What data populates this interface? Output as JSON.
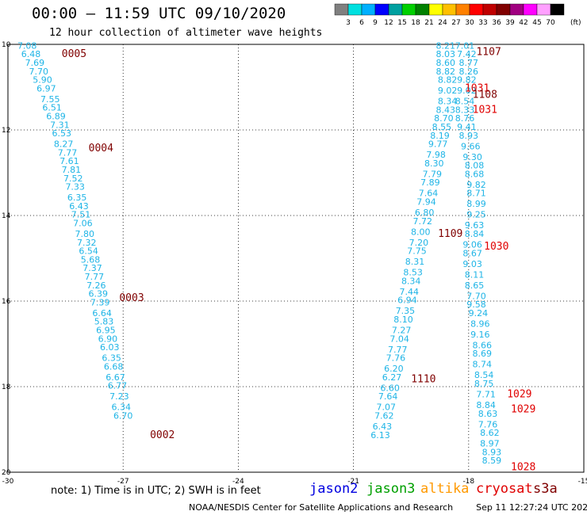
{
  "header": {
    "title": "00:00 – 11:59 UTC 09/10/2020",
    "subtitle": "12 hour collection of altimeter wave heights"
  },
  "legend": {
    "unit": "(ft)",
    "colors": [
      "#808080",
      "#00e0e0",
      "#00b0ff",
      "#0000ff",
      "#00a0a0",
      "#00d000",
      "#008000",
      "#ffff00",
      "#ffc000",
      "#ff8000",
      "#ff0000",
      "#c00000",
      "#800000",
      "#a00080",
      "#ff00ff",
      "#ffa0ff",
      "#000000"
    ],
    "labels": [
      "3",
      "6",
      "9",
      "12",
      "15",
      "18",
      "21",
      "24",
      "27",
      "30",
      "33",
      "36",
      "39",
      "42",
      "45",
      "70"
    ]
  },
  "axes": {
    "x_ticks": [
      "-30",
      "-27",
      "-24",
      "-21",
      "-18",
      "-15"
    ],
    "y_ticks": [
      "10",
      "12",
      "14",
      "16",
      "18",
      "20"
    ]
  },
  "chart_data": {
    "type": "scatter",
    "x_range": [
      -30,
      -15
    ],
    "y_range": [
      10,
      20
    ],
    "y_inverted": true,
    "grid": "dotted",
    "tracks": [
      {
        "color": "#1eb4e6",
        "points": [
          [
            -29.5,
            10.1,
            "7.08"
          ],
          [
            -29.4,
            10.3,
            "6.48"
          ],
          [
            -29.3,
            10.5,
            "7.69"
          ],
          [
            -29.2,
            10.7,
            "7.70"
          ],
          [
            -29.1,
            10.9,
            "5.90"
          ],
          [
            -29.0,
            11.1,
            "6.97"
          ],
          [
            -28.9,
            11.35,
            "7.55"
          ],
          [
            -28.85,
            11.55,
            "6.51"
          ],
          [
            -28.75,
            11.75,
            "6.89"
          ],
          [
            -28.65,
            11.95,
            "7.31"
          ],
          [
            -28.6,
            12.15,
            "6.53"
          ],
          [
            -28.55,
            12.4,
            "8.27"
          ],
          [
            -28.45,
            12.6,
            "7.77"
          ],
          [
            -28.4,
            12.8,
            "7.61"
          ],
          [
            -28.35,
            13.0,
            "7.81"
          ],
          [
            -28.3,
            13.2,
            "7.52"
          ],
          [
            -28.25,
            13.4,
            "7.33"
          ],
          [
            -28.2,
            13.65,
            "6.35"
          ],
          [
            -28.15,
            13.85,
            "6.43"
          ],
          [
            -28.1,
            14.05,
            "7.51"
          ],
          [
            -28.05,
            14.25,
            "7.06"
          ],
          [
            -28.0,
            14.5,
            "7.80"
          ],
          [
            -27.95,
            14.7,
            "7.32"
          ],
          [
            -27.9,
            14.9,
            "6.54"
          ],
          [
            -27.85,
            15.1,
            "5.68"
          ],
          [
            -27.8,
            15.3,
            "7.37"
          ],
          [
            -27.75,
            15.5,
            "7.77"
          ],
          [
            -27.7,
            15.7,
            "7.26"
          ],
          [
            -27.65,
            15.9,
            "6.39"
          ],
          [
            -27.6,
            16.1,
            "7.39"
          ],
          [
            -27.55,
            16.35,
            "6.64"
          ],
          [
            -27.5,
            16.55,
            "5.83"
          ],
          [
            -27.45,
            16.75,
            "6.95"
          ],
          [
            -27.4,
            16.95,
            "6.90"
          ],
          [
            -27.35,
            17.15,
            "6.03"
          ],
          [
            -27.3,
            17.4,
            "6.35"
          ],
          [
            -27.25,
            17.6,
            "6.68"
          ],
          [
            -27.2,
            17.85,
            "6.67"
          ],
          [
            -27.15,
            18.05,
            "6.77"
          ],
          [
            -27.1,
            18.3,
            "7.23"
          ],
          [
            -27.05,
            18.55,
            "6.34"
          ],
          [
            -27.0,
            18.75,
            "6.70"
          ]
        ]
      },
      {
        "color": "#1eb4e6",
        "points": [
          [
            -18.6,
            10.1,
            "8.21"
          ],
          [
            -18.6,
            10.3,
            "8.03"
          ],
          [
            -18.6,
            10.5,
            "8.60"
          ],
          [
            -18.6,
            10.7,
            "8.82"
          ],
          [
            -18.55,
            10.9,
            "8.82"
          ],
          [
            -18.55,
            11.15,
            "9.02"
          ],
          [
            -18.55,
            11.4,
            "8.34"
          ],
          [
            -18.6,
            11.6,
            "8.43"
          ],
          [
            -18.65,
            11.8,
            "8.70"
          ],
          [
            -18.7,
            12.0,
            "8.55"
          ],
          [
            -18.75,
            12.2,
            "8.19"
          ],
          [
            -18.8,
            12.4,
            "9.77"
          ],
          [
            -18.85,
            12.65,
            "7.98"
          ],
          [
            -18.9,
            12.85,
            "8.30"
          ],
          [
            -18.95,
            13.1,
            "7.79"
          ],
          [
            -19.0,
            13.3,
            "7.89"
          ],
          [
            -19.05,
            13.55,
            "7.64"
          ],
          [
            -19.1,
            13.75,
            "7.94"
          ],
          [
            -19.15,
            14.0,
            "6.80"
          ],
          [
            -19.2,
            14.2,
            "7.72"
          ],
          [
            -19.25,
            14.45,
            "8.00"
          ],
          [
            -19.3,
            14.7,
            "7.20"
          ],
          [
            -19.35,
            14.9,
            "7.75"
          ],
          [
            -19.4,
            15.15,
            "8.31"
          ],
          [
            -19.45,
            15.4,
            "8.53"
          ],
          [
            -19.5,
            15.6,
            "8.34"
          ],
          [
            -19.55,
            15.85,
            "7.44"
          ],
          [
            -19.6,
            16.05,
            "6.94"
          ],
          [
            -19.65,
            16.3,
            "7.35"
          ],
          [
            -19.7,
            16.5,
            "8.10"
          ],
          [
            -19.75,
            16.75,
            "7.27"
          ],
          [
            -19.8,
            16.95,
            "7.04"
          ],
          [
            -19.85,
            17.2,
            "7.77"
          ],
          [
            -19.9,
            17.4,
            "7.76"
          ],
          [
            -19.95,
            17.65,
            "6.20"
          ],
          [
            -20.0,
            17.85,
            "6.27"
          ],
          [
            -20.05,
            18.1,
            "6.60"
          ],
          [
            -20.1,
            18.3,
            "7.64"
          ],
          [
            -20.15,
            18.55,
            "7.07"
          ],
          [
            -20.2,
            18.75,
            "7.62"
          ],
          [
            -20.25,
            19.0,
            "6.43"
          ],
          [
            -20.3,
            19.2,
            "6.13"
          ]
        ]
      },
      {
        "color": "#1eb4e6",
        "points": [
          [
            -18.1,
            10.1,
            "7.01"
          ],
          [
            -18.05,
            10.3,
            "7.42"
          ],
          [
            -18.0,
            10.5,
            "8.77"
          ],
          [
            -18.0,
            10.7,
            "8.26"
          ],
          [
            -18.05,
            10.9,
            "9.82"
          ],
          [
            -18.05,
            11.15,
            "9.02"
          ],
          [
            -18.1,
            11.4,
            "8.54"
          ],
          [
            -18.1,
            11.6,
            "8.33"
          ],
          [
            -18.1,
            11.8,
            "8.76"
          ],
          [
            -18.05,
            12.0,
            "9.41"
          ],
          [
            -18.0,
            12.2,
            "8.93"
          ],
          [
            -17.95,
            12.45,
            "9.66"
          ],
          [
            -17.9,
            12.7,
            "9.30"
          ],
          [
            -17.85,
            12.9,
            "8.08"
          ],
          [
            -17.85,
            13.1,
            "8.68"
          ],
          [
            -17.8,
            13.35,
            "9.82"
          ],
          [
            -17.8,
            13.55,
            "8.71"
          ],
          [
            -17.8,
            13.8,
            "8.99"
          ],
          [
            -17.8,
            14.05,
            "9.25"
          ],
          [
            -17.85,
            14.3,
            "9.63"
          ],
          [
            -17.85,
            14.5,
            "8.84"
          ],
          [
            -17.9,
            14.75,
            "9.06"
          ],
          [
            -17.9,
            14.95,
            "8.67"
          ],
          [
            -17.9,
            15.2,
            "9.03"
          ],
          [
            -17.85,
            15.45,
            "8.11"
          ],
          [
            -17.85,
            15.7,
            "8.65"
          ],
          [
            -17.8,
            15.95,
            "7.70"
          ],
          [
            -17.8,
            16.15,
            "9.58"
          ],
          [
            -17.75,
            16.35,
            "9.24"
          ],
          [
            -17.7,
            16.6,
            "8.96"
          ],
          [
            -17.7,
            16.85,
            "9.16"
          ],
          [
            -17.65,
            17.1,
            "8.66"
          ],
          [
            -17.65,
            17.3,
            "8.69"
          ],
          [
            -17.65,
            17.55,
            "8.74"
          ],
          [
            -17.6,
            17.8,
            "8.54"
          ],
          [
            -17.6,
            18.0,
            "8.75"
          ],
          [
            -17.55,
            18.25,
            "7.71"
          ],
          [
            -17.55,
            18.5,
            "8.84"
          ],
          [
            -17.5,
            18.7,
            "8.63"
          ],
          [
            -17.5,
            18.95,
            "7.76"
          ],
          [
            -17.45,
            19.15,
            "8.62"
          ],
          [
            -17.45,
            19.4,
            "8.97"
          ],
          [
            -17.4,
            19.6,
            "8.93"
          ],
          [
            -17.4,
            19.8,
            "8.59"
          ]
        ]
      }
    ],
    "time_labels": [
      {
        "x": -28.6,
        "y": 10.3,
        "text": "0005",
        "color": "#800000"
      },
      {
        "x": -27.9,
        "y": 12.5,
        "text": "0004",
        "color": "#800000"
      },
      {
        "x": -27.1,
        "y": 16.0,
        "text": "0003",
        "color": "#800000"
      },
      {
        "x": -26.3,
        "y": 19.2,
        "text": "0002",
        "color": "#800000"
      },
      {
        "x": -17.8,
        "y": 10.25,
        "text": "1107",
        "color": "#800000"
      },
      {
        "x": -18.1,
        "y": 11.1,
        "text": "1031",
        "color": "#e00000"
      },
      {
        "x": -17.9,
        "y": 11.25,
        "text": "1108",
        "color": "#800000"
      },
      {
        "x": -17.9,
        "y": 11.6,
        "text": "1031",
        "color": "#e00000"
      },
      {
        "x": -18.8,
        "y": 14.5,
        "text": "1109",
        "color": "#800000"
      },
      {
        "x": -17.6,
        "y": 14.8,
        "text": "1030",
        "color": "#e00000"
      },
      {
        "x": -19.5,
        "y": 17.9,
        "text": "1110",
        "color": "#800000"
      },
      {
        "x": -17.0,
        "y": 18.25,
        "text": "1029",
        "color": "#e00000"
      },
      {
        "x": -16.9,
        "y": 18.6,
        "text": "1029",
        "color": "#e00000"
      },
      {
        "x": -16.9,
        "y": 19.95,
        "text": "1028",
        "color": "#e00000"
      }
    ]
  },
  "note": "note: 1) Time is in UTC; 2) SWH is in feet",
  "satellites": [
    {
      "name": "jason2",
      "color": "#0000e0"
    },
    {
      "name": "jason3",
      "color": "#00a000"
    },
    {
      "name": "altika",
      "color": "#ff9900"
    },
    {
      "name": "cryosat",
      "color": "#e00000"
    },
    {
      "name": "s3a",
      "color": "#800000"
    }
  ],
  "footer": {
    "credit": "NOAA/NESDIS Center for Satellite Applications and Research",
    "timestamp": "Sep 11 12:27:24 UTC 2020"
  }
}
